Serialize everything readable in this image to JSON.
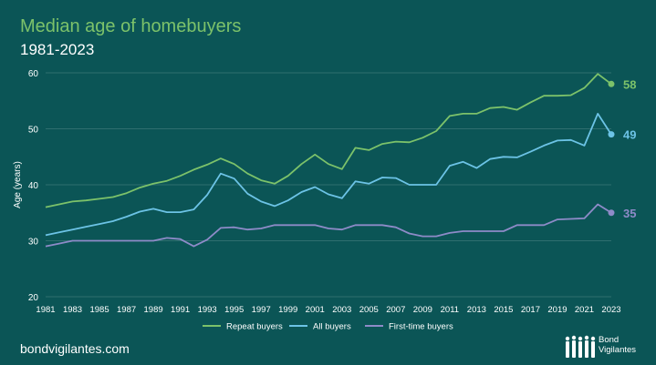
{
  "header": {
    "title": "Median age of homebuyers",
    "subtitle": "1981-2023"
  },
  "footer": {
    "url": "bondvigilantes.com",
    "logo_line1": "Bond",
    "logo_line2": "Vigilantes"
  },
  "colors": {
    "background": "#0b5556",
    "repeat": "#7cc26a",
    "all": "#6cc3e6",
    "first": "#8e8bc8",
    "grid": "#2f6e6f"
  },
  "chart_data": {
    "type": "line",
    "title": "Median age of homebuyers",
    "subtitle": "1981-2023",
    "ylabel": "Age (years)",
    "xlabel": "",
    "ylim": [
      20,
      60
    ],
    "yticks": [
      20,
      30,
      40,
      50,
      60
    ],
    "xtick_labels": [
      "1981",
      "1983",
      "1985",
      "1987",
      "1989",
      "1991",
      "1993",
      "1995",
      "1997",
      "1999",
      "2001",
      "2003",
      "2005",
      "2007",
      "2009",
      "2011",
      "2013",
      "2015",
      "2017",
      "2019",
      "2021",
      "2023"
    ],
    "grid": true,
    "legend_position": "bottom",
    "x": [
      1981,
      1982,
      1983,
      1984,
      1985,
      1986,
      1987,
      1988,
      1989,
      1990,
      1991,
      1992,
      1993,
      1994,
      1995,
      1996,
      1997,
      1998,
      1999,
      2000,
      2001,
      2002,
      2003,
      2004,
      2005,
      2006,
      2007,
      2008,
      2009,
      2010,
      2011,
      2012,
      2013,
      2014,
      2015,
      2016,
      2017,
      2018,
      2019,
      2020,
      2021,
      2022,
      2023
    ],
    "series": [
      {
        "name": "Repeat buyers",
        "color": "#7cc26a",
        "end_label": "58",
        "values": [
          36,
          36.5,
          37,
          37.2,
          37.5,
          37.8,
          38.5,
          39.5,
          40.2,
          40.7,
          41.6,
          42.7,
          43.6,
          44.7,
          43.7,
          42,
          40.8,
          40.2,
          41.6,
          43.7,
          45.4,
          43.7,
          42.8,
          46.6,
          46.2,
          47.3,
          47.7,
          47.6,
          48.4,
          49.6,
          52.3,
          52.7,
          52.7,
          53.7,
          53.9,
          53.4,
          54.7,
          55.9,
          55.9,
          56,
          57.3,
          59.8,
          58
        ]
      },
      {
        "name": "All buyers",
        "color": "#6cc3e6",
        "end_label": "49",
        "values": [
          31,
          31.5,
          32,
          32.5,
          33,
          33.5,
          34.3,
          35.2,
          35.7,
          35.1,
          35.1,
          35.6,
          38.2,
          42,
          41.1,
          38.4,
          37,
          36.2,
          37.2,
          38.7,
          39.6,
          38.3,
          37.6,
          40.6,
          40.2,
          41.3,
          41.2,
          40,
          40,
          40,
          43.4,
          44.1,
          43,
          44.6,
          45,
          44.9,
          45.9,
          47,
          47.9,
          48,
          47,
          52.7,
          49
        ]
      },
      {
        "name": "First-time buyers",
        "color": "#8e8bc8",
        "end_label": "35",
        "values": [
          29,
          29.5,
          30,
          30,
          30,
          30,
          30,
          30,
          30,
          30.5,
          30.3,
          29,
          30.2,
          32.3,
          32.4,
          32,
          32.2,
          32.8,
          32.8,
          32.8,
          32.8,
          32.2,
          32,
          32.8,
          32.8,
          32.8,
          32.4,
          31.3,
          30.8,
          30.8,
          31.4,
          31.7,
          31.7,
          31.7,
          31.7,
          32.8,
          32.8,
          32.8,
          33.8,
          33.9,
          34,
          36.5,
          35
        ]
      }
    ]
  }
}
